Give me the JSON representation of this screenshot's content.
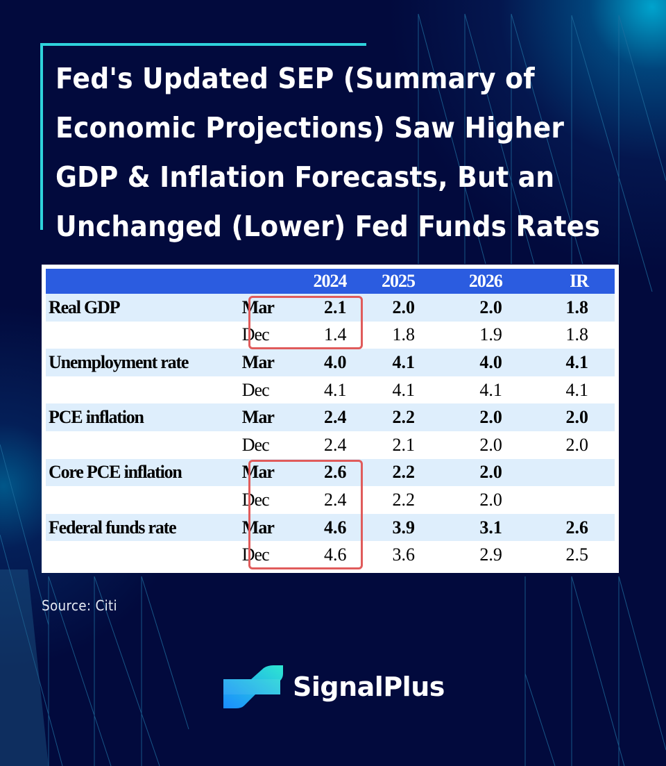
{
  "title": {
    "lines": [
      "Fed's Updated SEP (Summary of",
      "Economic Projections) Saw Higher",
      "GDP & Inflation Forecasts, But an",
      "Unchanged (Lower) Fed Funds Rates"
    ]
  },
  "colors": {
    "background": "#020a3d",
    "accent": "#2fd3dc",
    "table_header": "#2b5ce0",
    "row_highlight": "#deeefc",
    "highlight_box": "#e05b5b"
  },
  "table": {
    "headers": [
      "",
      "",
      "2024",
      "2025",
      "2026",
      "IR"
    ],
    "rows": [
      {
        "label": "Real GDP",
        "period": "Mar",
        "values": [
          "2.1",
          "2.0",
          "2.0",
          "1.8"
        ]
      },
      {
        "label": "",
        "period": "Dec",
        "values": [
          "1.4",
          "1.8",
          "1.9",
          "1.8"
        ]
      },
      {
        "label": "Unemployment rate",
        "period": "Mar",
        "values": [
          "4.0",
          "4.1",
          "4.0",
          "4.1"
        ]
      },
      {
        "label": "",
        "period": "Dec",
        "values": [
          "4.1",
          "4.1",
          "4.1",
          "4.1"
        ]
      },
      {
        "label": "PCE inflation",
        "period": "Mar",
        "values": [
          "2.4",
          "2.2",
          "2.0",
          "2.0"
        ]
      },
      {
        "label": "",
        "period": "Dec",
        "values": [
          "2.4",
          "2.1",
          "2.0",
          "2.0"
        ]
      },
      {
        "label": "Core PCE inflation",
        "period": "Mar",
        "values": [
          "2.6",
          "2.2",
          "2.0",
          ""
        ]
      },
      {
        "label": "",
        "period": "Dec",
        "values": [
          "2.4",
          "2.2",
          "2.0",
          ""
        ]
      },
      {
        "label": "Federal funds rate",
        "period": "Mar",
        "values": [
          "4.6",
          "3.9",
          "3.1",
          "2.6"
        ]
      },
      {
        "label": "",
        "period": "Dec",
        "values": [
          "4.6",
          "3.6",
          "2.9",
          "2.5"
        ]
      }
    ],
    "highlighted_groups": [
      "Real GDP 2024",
      "Core PCE inflation & Federal funds rate 2024"
    ]
  },
  "source": "Source: Citi",
  "brand": {
    "name": "SignalPlus",
    "logo_icon": "signalplus-logo-icon"
  }
}
